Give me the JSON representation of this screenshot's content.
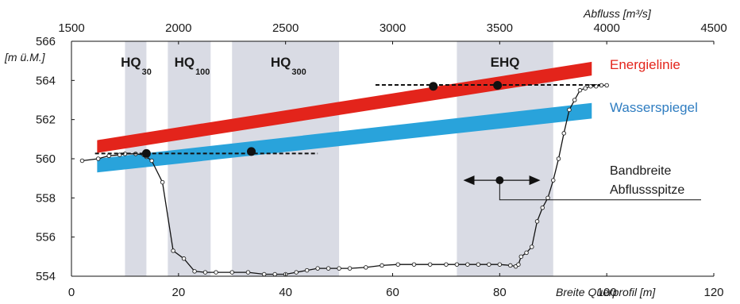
{
  "chart_data": {
    "type": "line",
    "title": "",
    "top_axis": {
      "label": "Abfluss [m³/s]",
      "range": [
        1500,
        4500
      ],
      "ticks": [
        "1500",
        "2000",
        "2500",
        "3000",
        "3500",
        "4000",
        "4500"
      ]
    },
    "bottom_axis": {
      "label": "Breite Querprofil [m]",
      "range": [
        0,
        120
      ],
      "ticks": [
        "0",
        "20",
        "40",
        "60",
        "80",
        "100",
        "120"
      ]
    },
    "left_axis": {
      "label": "[m ü.M.]",
      "range": [
        554,
        566
      ],
      "ticks": [
        "554",
        "556",
        "558",
        "560",
        "562",
        "564",
        "566"
      ]
    },
    "hq_bands": [
      {
        "name": "HQ",
        "sub": "30",
        "q_range": [
          1750,
          1850
        ]
      },
      {
        "name": "HQ",
        "sub": "100",
        "q_range": [
          1950,
          2150
        ]
      },
      {
        "name": "HQ",
        "sub": "300",
        "q_range": [
          2250,
          2750
        ]
      },
      {
        "name": "EHQ",
        "sub": "",
        "q_range": [
          3300,
          3750
        ]
      }
    ],
    "series": [
      {
        "name": "Energielinie",
        "color": "#e3241b",
        "q": [
          1620,
          3930
        ],
        "upper": [
          560.95,
          564.95
        ],
        "lower": [
          560.3,
          564.25
        ]
      },
      {
        "name": "Wasserspiegel",
        "color": "#29a3db",
        "q": [
          1620,
          3930
        ],
        "upper": [
          560.0,
          562.85
        ],
        "lower": [
          559.3,
          562.05
        ]
      }
    ],
    "cross_section": {
      "x": [
        2,
        5,
        7,
        9,
        10,
        12,
        13.5,
        14,
        15,
        17,
        19,
        21,
        23,
        25,
        27,
        30,
        33,
        36,
        38,
        40,
        42,
        44,
        46,
        48,
        50,
        52,
        55,
        58,
        61,
        64,
        67,
        70,
        72,
        74,
        76,
        78,
        80,
        82,
        83,
        83.5,
        84,
        85,
        86,
        87,
        88,
        89,
        90,
        91,
        92,
        93,
        94,
        95,
        96,
        97,
        98,
        99,
        100
      ],
      "y": [
        559.9,
        560.0,
        560.15,
        560.2,
        560.25,
        560.25,
        560.2,
        560.1,
        559.9,
        558.8,
        555.3,
        554.9,
        554.25,
        554.2,
        554.2,
        554.2,
        554.2,
        554.1,
        554.1,
        554.1,
        554.2,
        554.3,
        554.4,
        554.4,
        554.4,
        554.4,
        554.45,
        554.55,
        554.6,
        554.6,
        554.6,
        554.6,
        554.6,
        554.6,
        554.6,
        554.6,
        554.6,
        554.55,
        554.5,
        554.6,
        555.0,
        555.2,
        555.5,
        556.8,
        557.5,
        558.0,
        558.9,
        560.0,
        561.3,
        562.5,
        563.0,
        563.5,
        563.6,
        563.7,
        563.7,
        563.75,
        563.75
      ]
    },
    "levels": [
      {
        "q_range": [
          1610,
          2650
        ],
        "z": 560.27,
        "points": [
          [
            1850,
            560.27
          ],
          [
            2340,
            560.37
          ]
        ]
      },
      {
        "q_range": [
          2920,
          3970
        ],
        "z": 563.77,
        "points": [
          [
            3190,
            563.7
          ],
          [
            3490,
            563.75
          ]
        ]
      }
    ],
    "range_marker": {
      "q_from": 3330,
      "q_to": 3690,
      "center_q": 3500,
      "z": 558.9
    },
    "annotations": [
      "Bandbreite",
      "Abflussspitze"
    ],
    "grid": false,
    "legend_placement": "right"
  }
}
